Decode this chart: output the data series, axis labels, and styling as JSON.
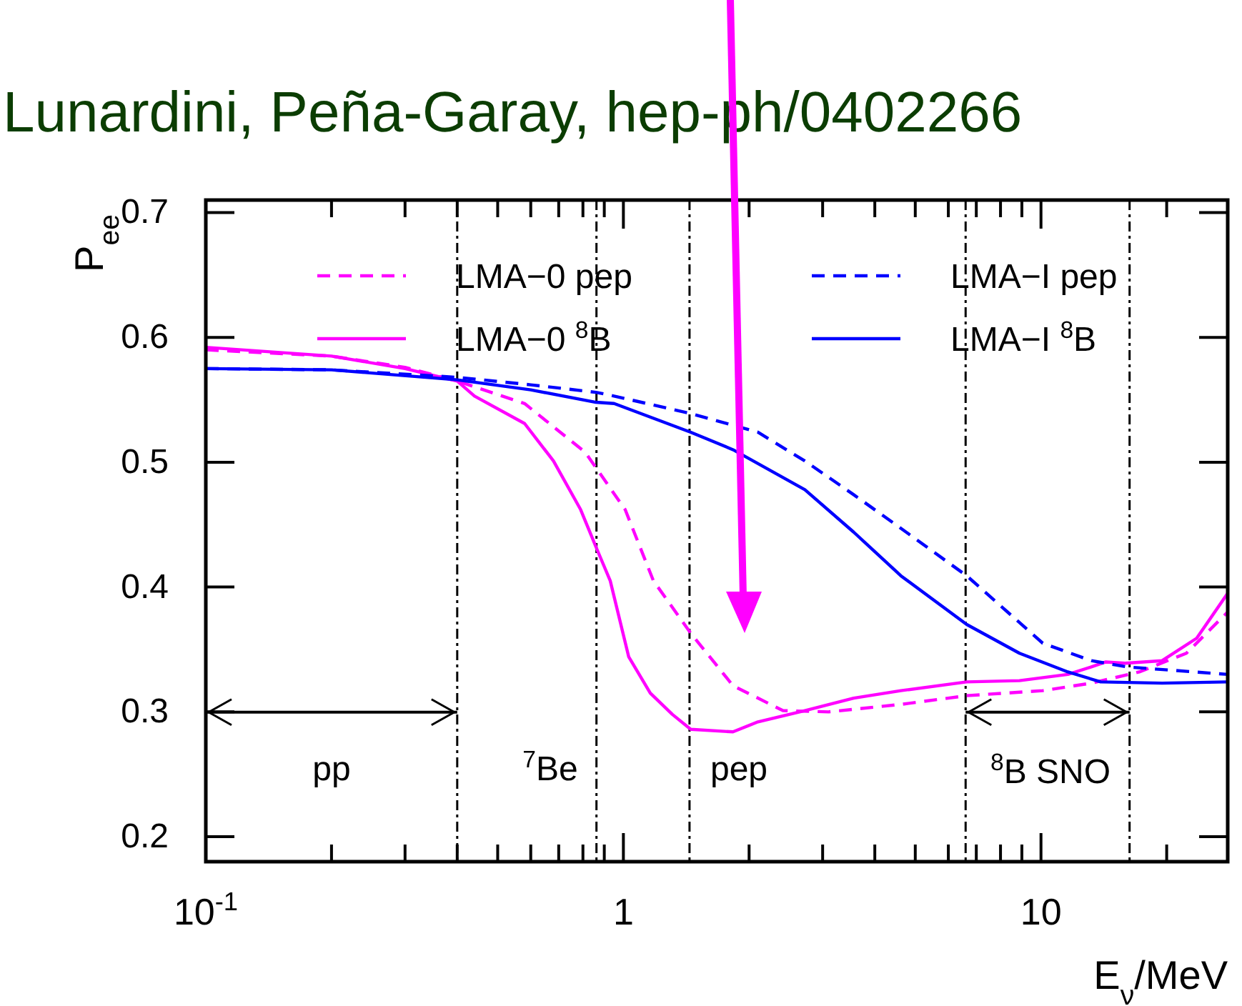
{
  "chart_data": {
    "type": "line",
    "title": "Lunardini, Peña-Garay, hep-ph/0402266",
    "xlabel": "E$_{ν}$/MeV",
    "ylabel": "P$_{ee}$",
    "log": "x",
    "xlim": [
      0.1,
      28
    ],
    "ylim": [
      0.18,
      0.71
    ],
    "xticks": [
      {
        "value": 0.1,
        "label": "10$^{-1}$"
      },
      {
        "value": 0.2,
        "label": null
      },
      {
        "value": 0.3,
        "label": null
      },
      {
        "value": 0.4,
        "label": null
      },
      {
        "value": 0.5,
        "label": null
      },
      {
        "value": 0.6,
        "label": null
      },
      {
        "value": 0.7,
        "label": null
      },
      {
        "value": 0.8,
        "label": null
      },
      {
        "value": 0.9,
        "label": null
      },
      1,
      {
        "value": 2,
        "label": null
      },
      {
        "value": 3,
        "label": null
      },
      {
        "value": 4,
        "label": null
      },
      {
        "value": 5,
        "label": null
      },
      {
        "value": 6,
        "label": null
      },
      {
        "value": 7,
        "label": null
      },
      {
        "value": 8,
        "label": null
      },
      {
        "value": 9,
        "label": null
      },
      10,
      {
        "value": 20,
        "label": null
      }
    ],
    "yticks": [
      0.2,
      0.3,
      0.4,
      0.5,
      0.6,
      0.7
    ],
    "grid": false,
    "legend": "top",
    "series": [
      {
        "name": "LMA−0 pep",
        "color": "#ff00ff",
        "line_style": "dashed",
        "x": [
          0.1,
          0.2,
          0.3,
          0.4,
          0.58,
          0.81,
          1.01,
          1.18,
          1.45,
          1.83,
          2.41,
          3.1,
          4.62,
          6.64,
          10.1,
          13.2,
          17.2,
          22.3,
          28
        ],
        "values": [
          0.59,
          0.585,
          0.576,
          0.565,
          0.547,
          0.508,
          0.462,
          0.405,
          0.363,
          0.321,
          0.301,
          0.3,
          0.306,
          0.313,
          0.317,
          0.323,
          0.332,
          0.347,
          0.38
        ]
      },
      {
        "name": "LMA−0 $^{8}$B",
        "color": "#ff00ff",
        "line_style": "solid",
        "x": [
          0.1,
          0.2,
          0.3,
          0.4,
          0.44,
          0.58,
          0.68,
          0.79,
          0.86,
          0.93,
          1.03,
          1.16,
          1.31,
          1.45,
          1.83,
          2.1,
          2.72,
          3.56,
          4.62,
          6.64,
          8.88,
          11.6,
          13.2,
          14.3,
          15.9,
          19.5,
          23.6,
          28
        ],
        "values": [
          0.592,
          0.585,
          0.575,
          0.565,
          0.553,
          0.531,
          0.501,
          0.462,
          0.432,
          0.405,
          0.344,
          0.315,
          0.298,
          0.286,
          0.284,
          0.292,
          0.301,
          0.311,
          0.317,
          0.324,
          0.325,
          0.33,
          0.336,
          0.34,
          0.339,
          0.341,
          0.359,
          0.395
        ]
      },
      {
        "name": "LMA−I pep",
        "color": "#0000ff",
        "line_style": "dashed",
        "x": [
          0.1,
          0.2,
          0.4,
          0.6,
          0.86,
          0.95,
          1.45,
          2.1,
          2.72,
          3.56,
          4.62,
          6.64,
          10.1,
          13.2,
          16.1,
          28
        ],
        "values": [
          0.575,
          0.574,
          0.568,
          0.562,
          0.556,
          0.553,
          0.539,
          0.524,
          0.501,
          0.474,
          0.447,
          0.409,
          0.355,
          0.341,
          0.336,
          0.33
        ]
      },
      {
        "name": "LMA−I $^{8}$B",
        "color": "#0000ff",
        "line_style": "solid",
        "x": [
          0.1,
          0.2,
          0.4,
          0.6,
          0.86,
          0.95,
          1.45,
          1.83,
          2.72,
          3.56,
          4.62,
          6.64,
          8.88,
          11.6,
          13.9,
          19.5,
          28
        ],
        "values": [
          0.575,
          0.574,
          0.566,
          0.558,
          0.548,
          0.547,
          0.524,
          0.51,
          0.478,
          0.444,
          0.409,
          0.37,
          0.347,
          0.332,
          0.324,
          0.323,
          0.324
        ]
      }
    ],
    "ref_lines": [
      {
        "axis": "x",
        "value": 0.4
      },
      {
        "axis": "x",
        "value": 0.862
      },
      {
        "axis": "x",
        "value": 1.44
      },
      {
        "axis": "x",
        "value": 6.6
      },
      {
        "axis": "x",
        "value": 16.3
      }
    ],
    "annotations": [
      "pp",
      "$^{7}$Be",
      "pep",
      "$^{8}$B SNO"
    ]
  }
}
